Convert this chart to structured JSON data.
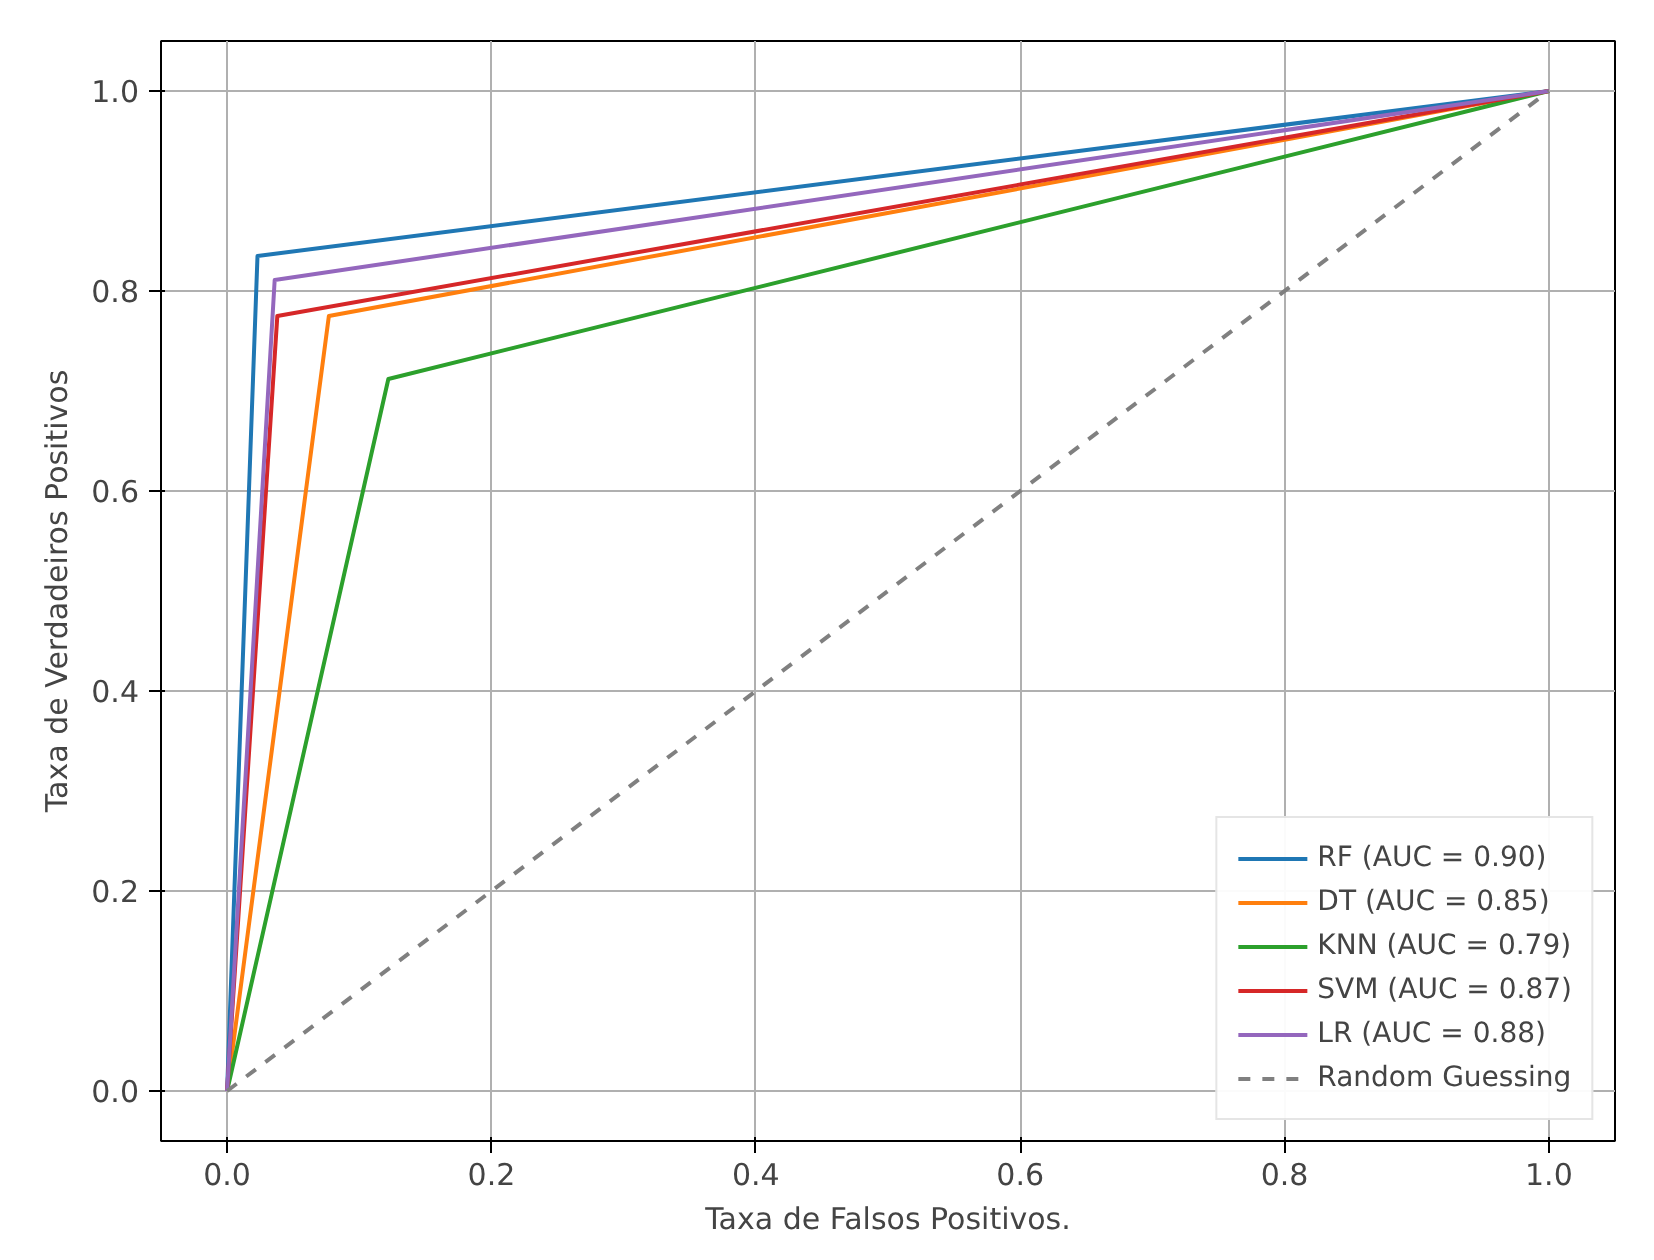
{
  "chart_data": {
    "type": "line",
    "xlabel": "Taxa de Falsos Positivos.",
    "ylabel": "Taxa de Verdadeiros Positivos",
    "xlim": [
      -0.05,
      1.05
    ],
    "ylim": [
      -0.05,
      1.05
    ],
    "xticks": [
      {
        "value": 0,
        "label": "0.0"
      },
      0.2,
      0.4,
      0.6,
      0.8,
      {
        "value": 1,
        "label": "1.0"
      }
    ],
    "yticks": [
      {
        "value": 0,
        "label": "0.0"
      },
      0.2,
      0.4,
      0.6,
      0.8,
      {
        "value": 1,
        "label": "1.0"
      }
    ],
    "grid": true,
    "legend": "bottom right",
    "marker": "none",
    "series": [
      {
        "name": "RF (AUC = 0.90)",
        "color": "#1f77b4",
        "x": [
          0,
          0.023,
          1
        ],
        "values": [
          0,
          0.835,
          1
        ]
      },
      {
        "name": "DT (AUC = 0.85)",
        "color": "#ff7f0e",
        "x": [
          0,
          0.077,
          1
        ],
        "values": [
          0,
          0.775,
          1
        ]
      },
      {
        "name": "KNN (AUC = 0.79)",
        "color": "#2ca02c",
        "x": [
          0,
          0.122,
          1
        ],
        "values": [
          0,
          0.712,
          1
        ]
      },
      {
        "name": "SVM (AUC = 0.87)",
        "color": "#d62728",
        "x": [
          0,
          0.038,
          1
        ],
        "values": [
          0,
          0.775,
          1
        ]
      },
      {
        "name": "LR (AUC = 0.88)",
        "color": "#9467bd",
        "x": [
          0,
          0.036,
          1
        ],
        "values": [
          0,
          0.811,
          1
        ]
      },
      {
        "name": "Random Guessing",
        "color": "#808080",
        "x": [
          0,
          1
        ],
        "values": [
          0,
          1
        ],
        "line_style": "dashed"
      }
    ]
  }
}
